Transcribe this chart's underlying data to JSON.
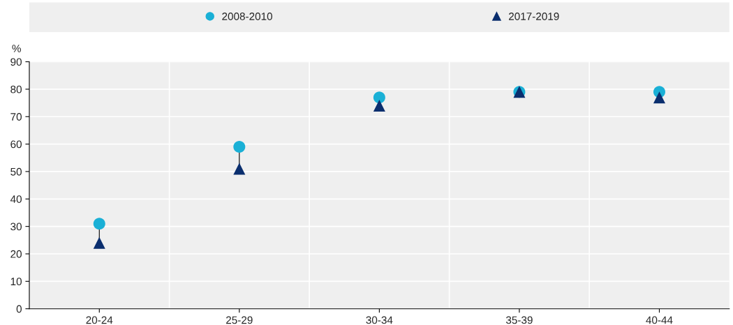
{
  "chart_data": {
    "type": "scatter",
    "ylabel": "%",
    "categories": [
      "20-24",
      "25-29",
      "30-34",
      "35-39",
      "40-44"
    ],
    "series": [
      {
        "name": "2008-2010",
        "color": "#1ab0d6",
        "marker": "circle",
        "values": [
          31,
          59,
          77,
          79,
          79
        ]
      },
      {
        "name": "2017-2019",
        "color": "#0a2e6e",
        "marker": "triangle",
        "values": [
          24,
          51,
          74,
          79,
          77
        ]
      }
    ],
    "ylim": [
      0,
      90
    ],
    "yticks": [
      0,
      10,
      20,
      30,
      40,
      50,
      60,
      70,
      80,
      90
    ],
    "grid": true,
    "legend": "top"
  }
}
